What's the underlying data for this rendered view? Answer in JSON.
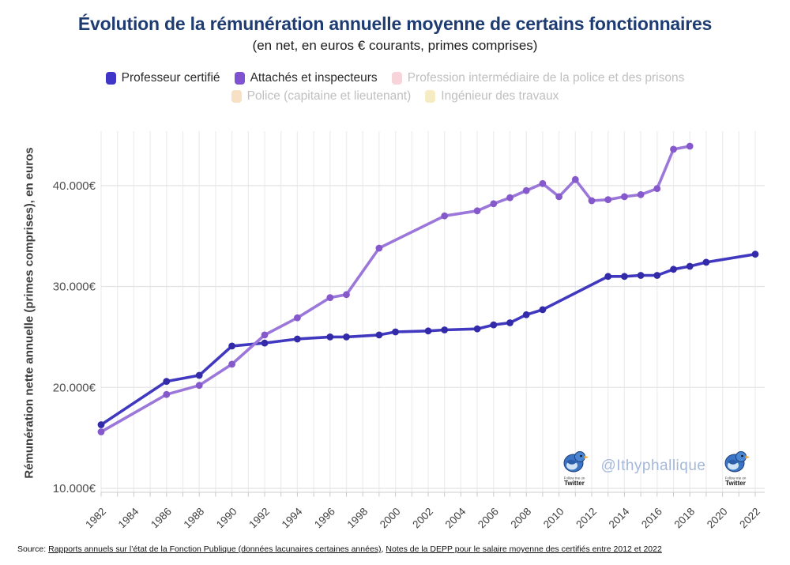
{
  "title": "Évolution de la rémunération annuelle moyenne de certains fonctionnaires",
  "subtitle": "(en net, en euros € courants, primes comprises)",
  "watermark": {
    "handle": "@Ithyphallique",
    "badge_caption": "Follow me on",
    "badge_brand": "Twitter"
  },
  "footer": {
    "prefix": "Source: ",
    "link1": "Rapports annuels sur l’état de la Fonction Publique (données lacunaires certaines années)",
    "separator": ", ",
    "link2": "Notes de la DEPP pour le salaire moyenne des certifiés entre 2012 et 2022"
  },
  "colors": {
    "title": "#1e3c72",
    "active_label": "#2b2b2b",
    "inactive_label": "#bfbfbf",
    "handle": "#a5b8d8",
    "grid_vertical": "#eeeeee",
    "grid_horizontal": "#e4e4e4",
    "axis_line": "#d6d6d6"
  },
  "chart_data": {
    "type": "line",
    "title": "Évolution de la rémunération annuelle moyenne de certains fonctionnaires",
    "xlabel": "",
    "ylabel": "Rémunération nette annuelle (primes comprises), en euros",
    "x_range": [
      1982,
      2022
    ],
    "ylim": [
      9500,
      44800
    ],
    "grid": true,
    "legend_position": "top",
    "x_tick_labels": [
      "1982",
      "1984",
      "1986",
      "1988",
      "1990",
      "1992",
      "1994",
      "1996",
      "1998",
      "2000",
      "2002",
      "2004",
      "2006",
      "2008",
      "2010",
      "2012",
      "2014",
      "2016",
      "2018",
      "2020",
      "2022"
    ],
    "y_ticks": [
      {
        "value": 10000,
        "label": "10.000€"
      },
      {
        "value": 20000,
        "label": "20.000€"
      },
      {
        "value": 30000,
        "label": "30.000€"
      },
      {
        "value": 40000,
        "label": "40.000€"
      }
    ],
    "series": [
      {
        "name": "Professeur certifié",
        "active": true,
        "swatch": "#3f35c6",
        "color": "#4038bf",
        "marker_color": "#322aa8",
        "points": [
          [
            1982,
            16300
          ],
          [
            1986,
            20600
          ],
          [
            1988,
            21200
          ],
          [
            1990,
            24100
          ],
          [
            1992,
            24400
          ],
          [
            1994,
            24800
          ],
          [
            1996,
            25000
          ],
          [
            1997,
            25000
          ],
          [
            1999,
            25200
          ],
          [
            2000,
            25500
          ],
          [
            2002,
            25600
          ],
          [
            2003,
            25700
          ],
          [
            2005,
            25800
          ],
          [
            2006,
            26200
          ],
          [
            2007,
            26400
          ],
          [
            2008,
            27200
          ],
          [
            2009,
            27700
          ],
          [
            2013,
            31000
          ],
          [
            2014,
            31000
          ],
          [
            2015,
            31100
          ],
          [
            2016,
            31100
          ],
          [
            2017,
            31700
          ],
          [
            2018,
            32000
          ],
          [
            2019,
            32400
          ],
          [
            2022,
            33200
          ]
        ]
      },
      {
        "name": "Attachés et inspecteurs",
        "active": true,
        "swatch": "#7e52d1",
        "color": "#9b77da",
        "marker_color": "#8559cb",
        "points": [
          [
            1982,
            15600
          ],
          [
            1986,
            19300
          ],
          [
            1988,
            20200
          ],
          [
            1990,
            22300
          ],
          [
            1992,
            25200
          ],
          [
            1994,
            26900
          ],
          [
            1996,
            28900
          ],
          [
            1997,
            29200
          ],
          [
            1999,
            33800
          ],
          [
            2003,
            37000
          ],
          [
            2005,
            37500
          ],
          [
            2006,
            38200
          ],
          [
            2007,
            38800
          ],
          [
            2008,
            39500
          ],
          [
            2009,
            40200
          ],
          [
            2010,
            38900
          ],
          [
            2011,
            40600
          ],
          [
            2012,
            38500
          ],
          [
            2013,
            38600
          ],
          [
            2014,
            38900
          ],
          [
            2015,
            39100
          ],
          [
            2016,
            39700
          ],
          [
            2017,
            43600
          ],
          [
            2018,
            43900
          ]
        ]
      },
      {
        "name": "Profession intermédiaire de la police et des prisons",
        "active": false,
        "swatch": "#f7d4da",
        "color": "#f7d4da",
        "marker_color": "#f7d4da",
        "points": []
      },
      {
        "name": "Police (capitaine et lieutenant)",
        "active": false,
        "swatch": "#f8e0c4",
        "color": "#f8e0c4",
        "marker_color": "#f8e0c4",
        "points": []
      },
      {
        "name": "Ingénieur des travaux",
        "active": false,
        "swatch": "#f6ecc3",
        "color": "#f6ecc3",
        "marker_color": "#f6ecc3",
        "points": []
      }
    ]
  }
}
